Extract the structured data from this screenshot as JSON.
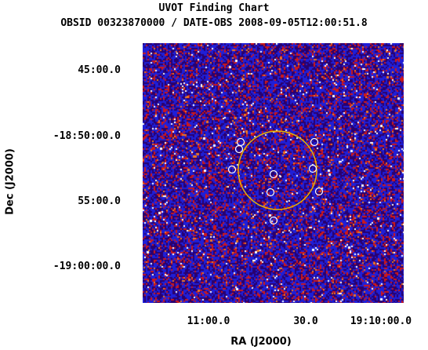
{
  "header": {
    "title": "UVOT Finding Chart",
    "subtitle": "OBSID 00323870000 / DATE-OBS 2008-09-05T12:00:51.8"
  },
  "axes": {
    "xlabel": "RA (J2000)",
    "ylabel": "Dec (J2000)",
    "ra_ticks": [
      "11:00.0",
      "30.0",
      "19:10:00.0"
    ],
    "dec_ticks": [
      "45:00.0",
      "-18:50:00.0",
      "55:00.0",
      "-19:00:00.0"
    ]
  },
  "image": {
    "colors": {
      "background": "#2a006e",
      "blue": "#1f1fd8",
      "red": "#d01818",
      "orange": "#f07820",
      "white": "#ffffff",
      "error_circle": "#e8b400",
      "source_marker": "#ffffff"
    }
  }
}
